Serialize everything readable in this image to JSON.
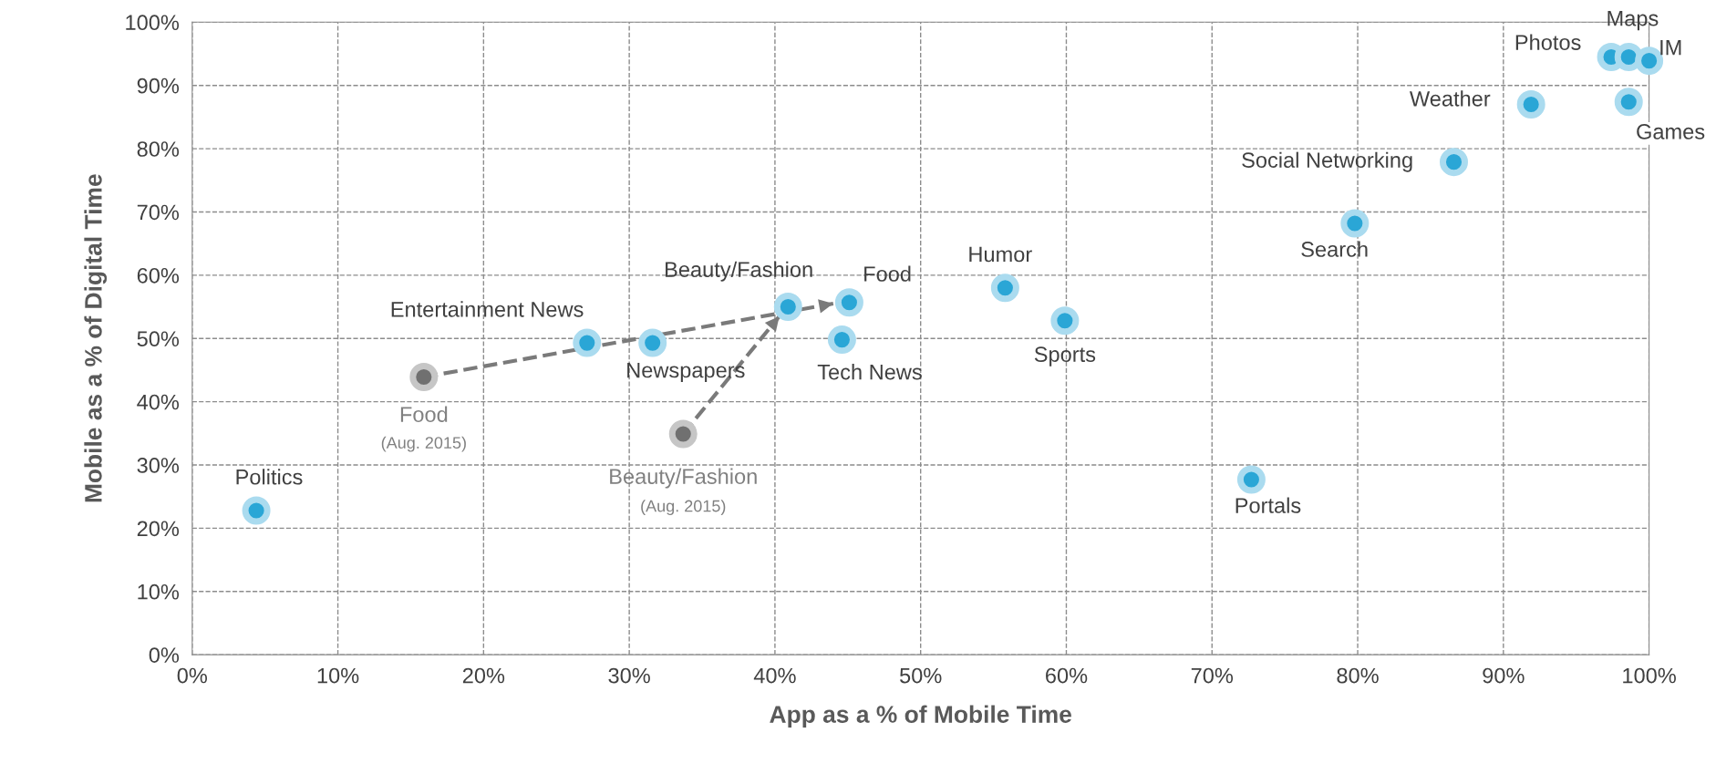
{
  "chart_data": {
    "type": "scatter",
    "xlabel": "App as a % of Mobile Time",
    "ylabel": "Mobile as a % of Digital Time",
    "xlim": [
      0,
      100
    ],
    "ylim": [
      0,
      100
    ],
    "xticks": [
      {
        "value": 0,
        "label": "0%"
      },
      {
        "value": 10,
        "label": "10%"
      },
      {
        "value": 20,
        "label": "20%"
      },
      {
        "value": 30,
        "label": "30%"
      },
      {
        "value": 40,
        "label": "40%"
      },
      {
        "value": 50,
        "label": "50%"
      },
      {
        "value": 60,
        "label": "60%"
      },
      {
        "value": 70,
        "label": "70%"
      },
      {
        "value": 80,
        "label": "80%"
      },
      {
        "value": 90,
        "label": "90%"
      },
      {
        "value": 100,
        "label": "100%"
      }
    ],
    "yticks": [
      {
        "value": 0,
        "label": "0%"
      },
      {
        "value": 10,
        "label": "10%"
      },
      {
        "value": 20,
        "label": "20%"
      },
      {
        "value": 30,
        "label": "30%"
      },
      {
        "value": 40,
        "label": "40%"
      },
      {
        "value": 50,
        "label": "50%"
      },
      {
        "value": 60,
        "label": "60%"
      },
      {
        "value": 70,
        "label": "70%"
      },
      {
        "value": 80,
        "label": "80%"
      },
      {
        "value": 90,
        "label": "90%"
      },
      {
        "value": 100,
        "label": "100%"
      }
    ],
    "grid": true,
    "marker": "circle",
    "series": [
      {
        "type": "line",
        "line_style": "dashed",
        "marker": "none",
        "color": "#7a7a7a",
        "x": [
          15.9,
          44.0
        ],
        "values": [
          43.9,
          55.5
        ]
      },
      {
        "type": "line",
        "line_style": "dashed",
        "marker": "none",
        "color": "#7a7a7a",
        "x": [
          33.7,
          40.3
        ],
        "values": [
          34.9,
          53.5
        ]
      },
      {
        "color": "#2aa6d6",
        "x": [
          4.4,
          27.1,
          31.6,
          40.9,
          45.1,
          44.6,
          55.8,
          59.9,
          72.7,
          79.8,
          86.6,
          91.9,
          97.4,
          98.6,
          100,
          98.6
        ],
        "values": [
          22.8,
          49.3,
          49.3,
          55.0,
          55.7,
          49.8,
          58.0,
          52.8,
          27.7,
          68.2,
          77.9,
          87.0,
          94.5,
          94.5,
          93.9,
          87.4
        ]
      },
      {
        "type": "scatter",
        "color": "#707070",
        "x": [
          15.9,
          33.7
        ],
        "values": [
          43.9,
          34.9
        ]
      }
    ],
    "annotations": [
      {
        "text": "Politics",
        "x": 4.4,
        "y": 22.8
      },
      {
        "text": "Entertainment News",
        "x": 27.1,
        "y": 49.3
      },
      {
        "text": "Newspapers",
        "x": 31.6,
        "y": 49.3
      },
      {
        "text": "Beauty/Fashion",
        "x": 40.9,
        "y": 55.0
      },
      {
        "text": "Food",
        "x": 45.1,
        "y": 55.7
      },
      {
        "text": "Tech News",
        "x": 44.6,
        "y": 49.8
      },
      {
        "text": "Humor",
        "x": 55.8,
        "y": 58.0
      },
      {
        "text": "Sports",
        "x": 59.9,
        "y": 52.8
      },
      {
        "text": "Portals",
        "x": 72.7,
        "y": 27.7
      },
      {
        "text": "Search",
        "x": 79.8,
        "y": 68.2
      },
      {
        "text": "Social Networking",
        "x": 86.6,
        "y": 77.9
      },
      {
        "text": "Weather",
        "x": 91.9,
        "y": 87.0
      },
      {
        "text": "Photos",
        "x": 97.4,
        "y": 94.5
      },
      {
        "text": "Maps",
        "x": 98.6,
        "y": 94.5
      },
      {
        "text": "IM",
        "x": 100,
        "y": 93.9
      },
      {
        "text": "Games",
        "x": 98.6,
        "y": 87.4
      },
      {
        "text": "Food",
        "x": 15.9,
        "y": 43.9
      },
      "(Aug. 2015)",
      {
        "text": "Beauty/Fashion",
        "x": 33.7,
        "y": 34.9
      },
      "(Aug. 2015)"
    ]
  }
}
